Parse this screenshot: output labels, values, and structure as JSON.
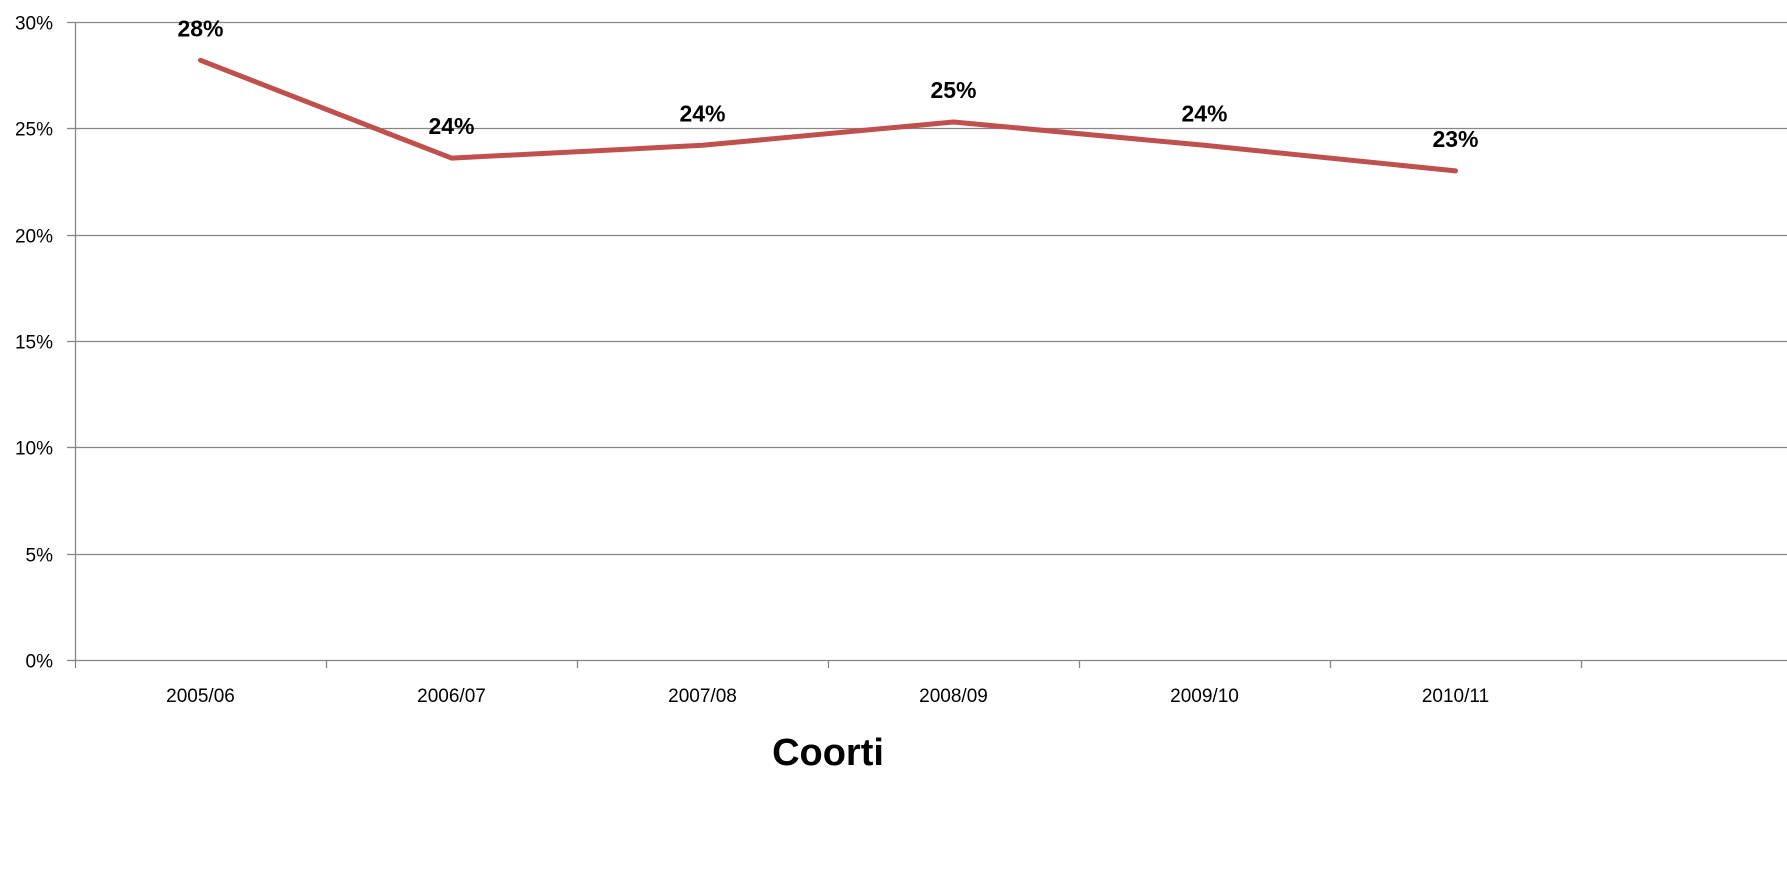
{
  "chart_data": {
    "type": "line",
    "categories": [
      "2005/06",
      "2006/07",
      "2007/08",
      "2008/09",
      "2009/10",
      "2010/11"
    ],
    "series": [
      {
        "values": [
          28.2,
          23.6,
          24.2,
          25.3,
          24.2,
          23.0
        ],
        "data_labels": [
          "28%",
          "24%",
          "24%",
          "25%",
          "24%",
          "23%"
        ],
        "color": "#c0504d"
      }
    ],
    "ylim": [
      0,
      30
    ],
    "yticks": [
      0,
      5,
      10,
      15,
      20,
      25,
      30
    ],
    "ytick_labels": [
      "0%",
      "5%",
      "10%",
      "15%",
      "20%",
      "25%",
      "30%"
    ],
    "xlabel": "Coorti",
    "ylabel": "",
    "title": "",
    "grid": true,
    "legend": false
  },
  "colors": {
    "line": "#c0504d",
    "grid": "#868686",
    "axis": "#868686"
  }
}
